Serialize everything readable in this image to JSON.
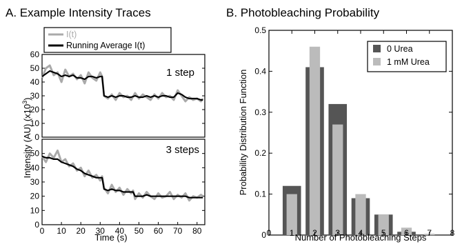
{
  "figure": {
    "panel_a_title": "A. Example Intensity Traces",
    "panel_b_title": "B. Photobleaching Probability"
  },
  "chart_data": [
    {
      "type": "line",
      "title": "A. Example Intensity Traces",
      "xlabel": "Time (s)",
      "ylabel": "Intensity (AU) (x10",
      "ylabel_superscript": "3",
      "ylabel_close": ")",
      "legend": {
        "placement": "top",
        "entries": [
          {
            "label": "I(t)",
            "color": "#aaaaaa"
          },
          {
            "label": "Running Average I(t)",
            "color": "#000000"
          }
        ]
      },
      "xlim": [
        0,
        84
      ],
      "xticks": [
        0,
        10,
        20,
        30,
        40,
        50,
        60,
        70,
        80
      ],
      "panels": [
        {
          "annotation": "1 step",
          "ylim": [
            0,
            60
          ],
          "yticks": [
            0,
            10,
            20,
            30,
            40,
            50,
            60
          ],
          "x": [
            0,
            2,
            4,
            6,
            8,
            10,
            12,
            14,
            16,
            18,
            20,
            22,
            24,
            26,
            28,
            30,
            31,
            32,
            34,
            36,
            38,
            40,
            42,
            44,
            46,
            48,
            50,
            52,
            54,
            56,
            58,
            60,
            62,
            64,
            66,
            68,
            70,
            72,
            74,
            76,
            78,
            80,
            82,
            83
          ],
          "series": [
            {
              "name": "I(t)",
              "color": "#aaaaaa",
              "values": [
                43,
                50,
                52,
                45,
                47,
                40,
                49,
                44,
                46,
                42,
                45,
                39,
                47,
                43,
                41,
                47,
                44,
                30,
                28,
                31,
                27,
                32,
                29,
                30,
                27,
                32,
                28,
                31,
                29,
                27,
                31,
                28,
                32,
                29,
                30,
                27,
                34,
                30,
                26,
                29,
                27,
                28,
                26,
                28
              ]
            },
            {
              "name": "Running Average I(t)",
              "color": "#000000",
              "values": [
                44,
                46,
                48,
                47,
                46,
                44,
                45,
                44,
                45,
                43,
                43,
                42,
                44,
                44,
                43,
                44,
                44,
                30,
                29,
                30,
                29,
                30,
                30,
                29,
                29,
                30,
                29,
                29,
                30,
                29,
                30,
                29,
                30,
                30,
                29,
                29,
                32,
                31,
                29,
                28,
                28,
                28,
                27,
                27
              ]
            }
          ]
        },
        {
          "annotation": "3 steps",
          "ylim": [
            0,
            60
          ],
          "yticks": [
            0,
            10,
            20,
            30,
            40,
            50
          ],
          "x": [
            0,
            2,
            4,
            6,
            8,
            10,
            12,
            14,
            16,
            18,
            20,
            22,
            24,
            26,
            28,
            30,
            31,
            32,
            34,
            36,
            38,
            40,
            42,
            44,
            46,
            47,
            48,
            50,
            52,
            54,
            56,
            58,
            60,
            62,
            64,
            66,
            68,
            70,
            72,
            74,
            76,
            78,
            80,
            82,
            83
          ],
          "series": [
            {
              "name": "I(t)",
              "color": "#aaaaaa",
              "values": [
                48,
                44,
                50,
                47,
                52,
                44,
                46,
                41,
                43,
                38,
                40,
                34,
                38,
                33,
                35,
                31,
                34,
                26,
                22,
                28,
                23,
                26,
                21,
                25,
                22,
                24,
                18,
                22,
                19,
                23,
                20,
                18,
                22,
                19,
                20,
                23,
                18,
                21,
                19,
                22,
                17,
                20,
                19,
                21,
                20
              ]
            },
            {
              "name": "Running Average I(t)",
              "color": "#000000",
              "values": [
                48,
                47,
                47,
                46,
                46,
                44,
                43,
                42,
                41,
                39,
                38,
                36,
                35,
                34,
                33,
                33,
                33,
                25,
                24,
                25,
                24,
                24,
                23,
                23,
                23,
                23,
                20,
                20,
                20,
                21,
                20,
                20,
                20,
                20,
                20,
                20,
                20,
                20,
                20,
                20,
                19,
                19,
                19,
                19,
                19
              ]
            }
          ]
        }
      ]
    },
    {
      "type": "bar",
      "title": "B. Photobleaching Probability",
      "xlabel": "Number of Photobleaching Steps",
      "ylabel": "Probability Distribution Function",
      "xlim": [
        0,
        8
      ],
      "ylim": [
        0,
        0.5
      ],
      "xticks": [
        0,
        1,
        2,
        3,
        4,
        5,
        6,
        7,
        8
      ],
      "yticks": [
        0,
        0.1,
        0.2,
        0.3,
        0.4,
        0.5
      ],
      "ytick_labels": [
        "0",
        "0.1",
        "0.2",
        "0.3",
        "0.4",
        "0.5"
      ],
      "legend": {
        "placement": "top-right"
      },
      "categories": [
        1,
        2,
        3,
        4,
        5,
        6,
        7
      ],
      "series": [
        {
          "name": "0 Urea",
          "color": "#555555",
          "values": [
            0.12,
            0.41,
            0.32,
            0.09,
            0.05,
            0.008,
            0.0
          ]
        },
        {
          "name": "1 mM Urea",
          "color": "#bbbbbb",
          "values": [
            0.1,
            0.46,
            0.27,
            0.1,
            0.05,
            0.018,
            0.003
          ]
        }
      ]
    }
  ]
}
